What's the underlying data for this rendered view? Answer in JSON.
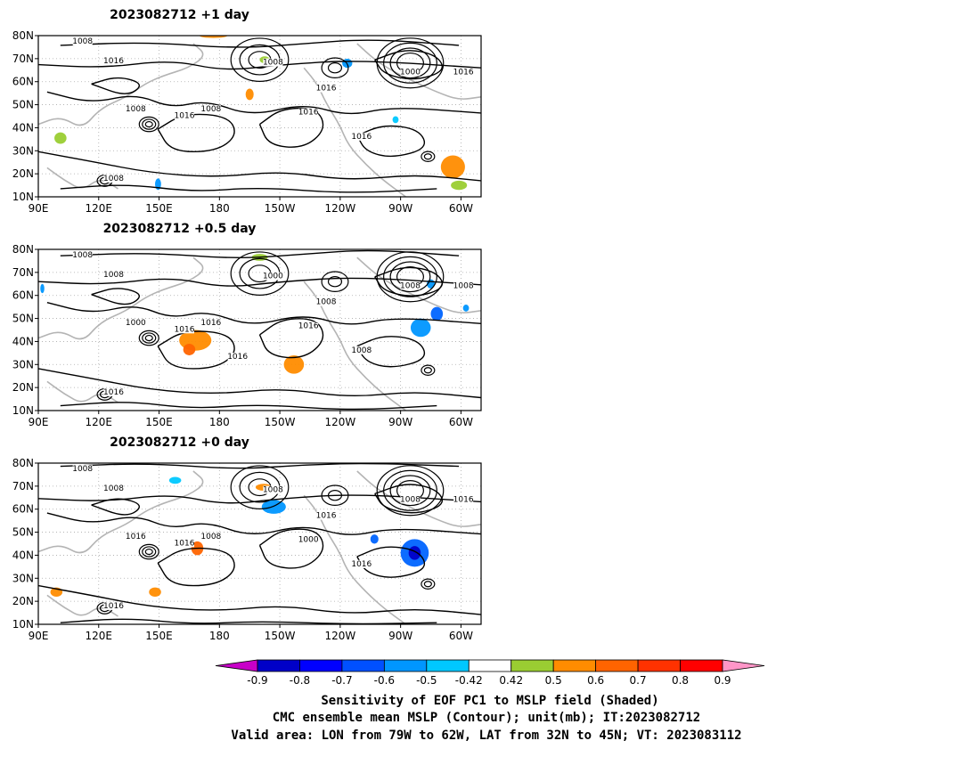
{
  "panels": [
    {
      "title": "2023082712  +1 day",
      "contour_labels": [
        "1008",
        "1008",
        "1016",
        "1016",
        "1008",
        "1016",
        "1016",
        "1008",
        "1016",
        "1000",
        "1016",
        "1008"
      ],
      "shading": [
        {
          "lon": 170,
          "lat": 79,
          "dlon": 14,
          "dlat": 2,
          "color": "#ff8c00"
        },
        {
          "lon": 193,
          "lat": 52,
          "dlon": 4,
          "dlat": 5,
          "color": "#ff8c00"
        },
        {
          "lon": 148,
          "lat": 13,
          "dlon": 3,
          "dlat": 5,
          "color": "#0096ff"
        },
        {
          "lon": 290,
          "lat": 18,
          "dlon": 12,
          "dlat": 10,
          "color": "#ff8c00"
        },
        {
          "lon": 295,
          "lat": 13,
          "dlon": 8,
          "dlat": 4,
          "color": "#9acd32"
        },
        {
          "lon": 98,
          "lat": 33,
          "dlon": 6,
          "dlat": 5,
          "color": "#9acd32"
        },
        {
          "lon": 241,
          "lat": 66,
          "dlon": 5,
          "dlat": 4,
          "color": "#0096ff"
        },
        {
          "lon": 266,
          "lat": 42,
          "dlon": 3,
          "dlat": 3,
          "color": "#00c8ff"
        },
        {
          "lon": 200,
          "lat": 68,
          "dlon": 5,
          "dlat": 3,
          "color": "#9acd32"
        }
      ]
    },
    {
      "title": "2023082712  +0.5 day",
      "contour_labels": [
        "1008",
        "1016",
        "1008",
        "1016",
        "1000",
        "1008",
        "1008",
        "1016",
        "1016",
        "1008",
        "1008",
        "1000",
        "1016"
      ],
      "shading": [
        {
          "lon": 160,
          "lat": 36,
          "dlon": 16,
          "dlat": 9,
          "color": "#ff8c00"
        },
        {
          "lon": 162,
          "lat": 34,
          "dlon": 6,
          "dlat": 5,
          "color": "#ff6400"
        },
        {
          "lon": 212,
          "lat": 26,
          "dlon": 10,
          "dlat": 8,
          "color": "#ff8c00"
        },
        {
          "lon": 275,
          "lat": 42,
          "dlon": 10,
          "dlat": 8,
          "color": "#0096ff"
        },
        {
          "lon": 285,
          "lat": 49,
          "dlon": 6,
          "dlat": 6,
          "color": "#0064ff"
        },
        {
          "lon": 196,
          "lat": 75,
          "dlon": 8,
          "dlat": 3,
          "color": "#9acd32"
        },
        {
          "lon": 283,
          "lat": 63,
          "dlon": 4,
          "dlat": 4,
          "color": "#0096ff"
        },
        {
          "lon": 91,
          "lat": 61,
          "dlon": 2,
          "dlat": 4,
          "color": "#0096ff"
        },
        {
          "lon": 301,
          "lat": 53,
          "dlon": 3,
          "dlat": 3,
          "color": "#0096ff"
        }
      ]
    },
    {
      "title": "2023082712  +0 day",
      "contour_labels": [
        "1008",
        "1016",
        "1008",
        "1016",
        "1008",
        "1016",
        "1016",
        "1008",
        "1000",
        "1008",
        "1016",
        "1016"
      ],
      "shading": [
        {
          "lon": 270,
          "lat": 35,
          "dlon": 14,
          "dlat": 12,
          "color": "#0064ff"
        },
        {
          "lon": 274,
          "lat": 38,
          "dlon": 6,
          "dlat": 6,
          "color": "#0000c8"
        },
        {
          "lon": 255,
          "lat": 45,
          "dlon": 4,
          "dlat": 4,
          "color": "#0064ff"
        },
        {
          "lon": 166,
          "lat": 40,
          "dlon": 6,
          "dlat": 6,
          "color": "#ff6400"
        },
        {
          "lon": 145,
          "lat": 22,
          "dlon": 6,
          "dlat": 4,
          "color": "#ff8c00"
        },
        {
          "lon": 96,
          "lat": 22,
          "dlon": 6,
          "dlat": 4,
          "color": "#ff8c00"
        },
        {
          "lon": 201,
          "lat": 58,
          "dlon": 12,
          "dlat": 6,
          "color": "#0096ff"
        },
        {
          "lon": 198,
          "lat": 68,
          "dlon": 8,
          "dlat": 3,
          "color": "#ff8c00"
        },
        {
          "lon": 155,
          "lat": 71,
          "dlon": 6,
          "dlat": 3,
          "color": "#00c8ff"
        }
      ]
    }
  ],
  "lat_ticks": [
    "80N",
    "70N",
    "60N",
    "50N",
    "40N",
    "30N",
    "20N",
    "10N"
  ],
  "lon_ticks": [
    "90E",
    "120E",
    "150E",
    "180",
    "150W",
    "120W",
    "90W",
    "60W"
  ],
  "colorbar": {
    "colors": [
      "#c800c8",
      "#0000c8",
      "#0000ff",
      "#0050ff",
      "#0096ff",
      "#00c8ff",
      "#ffffff",
      "#9acd32",
      "#ff8c00",
      "#ff6400",
      "#ff3200",
      "#ff0000",
      "#ff96c8"
    ],
    "labels": [
      "-0.9",
      "-0.8",
      "-0.7",
      "-0.6",
      "-0.5",
      "-0.42",
      "0.42",
      "0.5",
      "0.6",
      "0.7",
      "0.8",
      "0.9"
    ]
  },
  "caption": [
    "Sensitivity of EOF PC1 to MSLP field (Shaded)",
    "CMC ensemble mean MSLP (Contour); unit(mb); IT:2023082712",
    "Valid area: LON from 79W to 62W, LAT from 32N to 45N; VT: 2023083112"
  ]
}
